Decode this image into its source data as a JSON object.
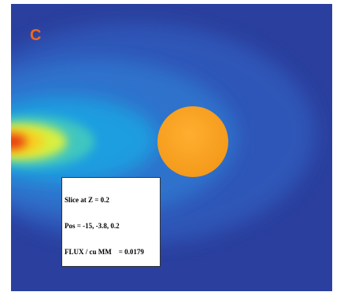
{
  "panel_label": "C",
  "info_box": {
    "lines": [
      "Slice at Z = 0.2",
      "Pos = -15, -3.8, 0.2",
      "FLUX / cu MM    = 0.0179"
    ]
  }
}
